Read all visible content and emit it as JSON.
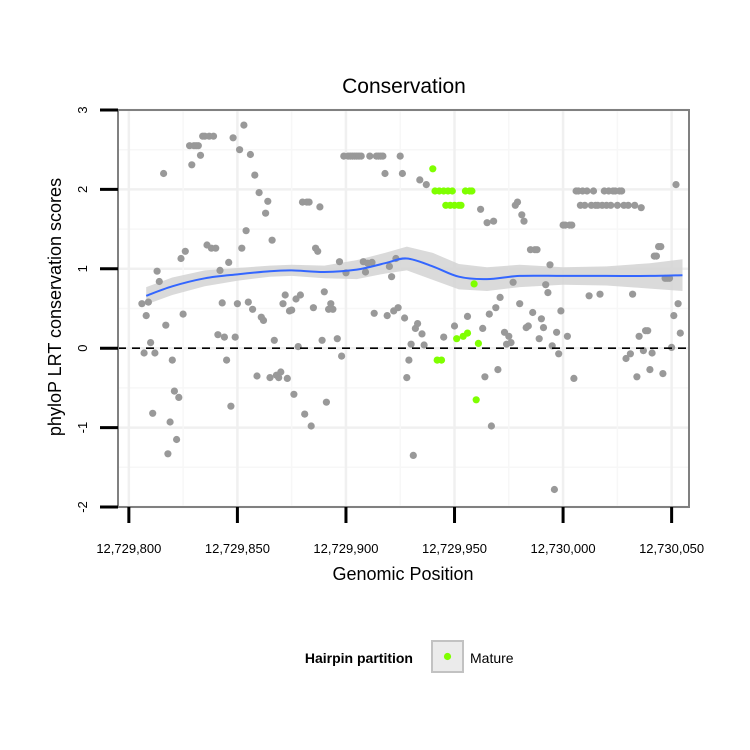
{
  "chart_data": {
    "type": "scatter",
    "title": "Conservation",
    "xlabel": "Genomic Position",
    "ylabel": "phyloP LRT conservation scores",
    "xlim": [
      12729795,
      12730058
    ],
    "ylim": [
      -2,
      3
    ],
    "x_ticks": [
      12729800,
      12729850,
      12729900,
      12729950,
      12730000,
      12730050
    ],
    "x_tick_labels": [
      "12,729,800",
      "12,729,850",
      "12,729,900",
      "12,729,950",
      "12,730,000",
      "12,730,050"
    ],
    "y_ticks": [
      -2,
      -1,
      0,
      1,
      2,
      3
    ],
    "y_tick_labels": [
      "-2",
      "-1",
      "0",
      "1",
      "2",
      "3"
    ],
    "reference_line": {
      "y": 0,
      "style": "dashed"
    },
    "grid": true,
    "colors": {
      "other": "#999999",
      "mature": "#7FFF00",
      "smooth": "#3366FF",
      "ribbon": "#D3D3D3",
      "panel_border": "#808080"
    },
    "legend": {
      "title": "Hairpin partition",
      "entries": [
        {
          "label": "Mature",
          "color": "#7FFF00"
        }
      ],
      "position": "bottom"
    },
    "smooth_line": {
      "x": [
        12729808,
        12729820,
        12729835,
        12729850,
        12729865,
        12729875,
        12729890,
        12729905,
        12729918,
        12729928,
        12729940,
        12729952,
        12729965,
        12729980,
        12730000,
        12730020,
        12730040,
        12730055
      ],
      "y": [
        0.66,
        0.78,
        0.88,
        0.93,
        0.97,
        0.98,
        0.96,
        0.99,
        1.07,
        1.13,
        1.03,
        0.9,
        0.87,
        0.91,
        0.91,
        0.91,
        0.91,
        0.92
      ],
      "lower": [
        0.55,
        0.67,
        0.78,
        0.85,
        0.9,
        0.91,
        0.88,
        0.87,
        0.94,
        0.98,
        0.86,
        0.74,
        0.72,
        0.77,
        0.8,
        0.79,
        0.75,
        0.72
      ],
      "upper": [
        0.77,
        0.89,
        0.98,
        1.01,
        1.04,
        1.05,
        1.04,
        1.11,
        1.2,
        1.28,
        1.2,
        1.06,
        1.02,
        1.05,
        1.02,
        1.03,
        1.07,
        1.12
      ]
    },
    "series": [
      {
        "name": "Other",
        "points": [
          [
            12729806,
            0.56
          ],
          [
            12729807,
            -0.06
          ],
          [
            12729808,
            0.41
          ],
          [
            12729809,
            0.58
          ],
          [
            12729810,
            0.07
          ],
          [
            12729811,
            -0.82
          ],
          [
            12729812,
            -0.06
          ],
          [
            12729813,
            0.97
          ],
          [
            12729814,
            0.84
          ],
          [
            12729816,
            2.2
          ],
          [
            12729817,
            0.29
          ],
          [
            12729818,
            -1.33
          ],
          [
            12729819,
            -0.93
          ],
          [
            12729820,
            -0.15
          ],
          [
            12729821,
            -0.54
          ],
          [
            12729822,
            -1.15
          ],
          [
            12729823,
            -0.62
          ],
          [
            12729824,
            1.13
          ],
          [
            12729825,
            0.43
          ],
          [
            12729826,
            1.22
          ],
          [
            12729828,
            2.55
          ],
          [
            12729829,
            2.31
          ],
          [
            12729830,
            2.55
          ],
          [
            12729831,
            2.55
          ],
          [
            12729832,
            2.55
          ],
          [
            12729833,
            2.43
          ],
          [
            12729834,
            2.67
          ],
          [
            12729835,
            2.67
          ],
          [
            12729836,
            1.3
          ],
          [
            12729837,
            2.67
          ],
          [
            12729838,
            1.26
          ],
          [
            12729839,
            2.67
          ],
          [
            12729840,
            1.26
          ],
          [
            12729841,
            0.17
          ],
          [
            12729842,
            0.98
          ],
          [
            12729843,
            0.57
          ],
          [
            12729844,
            0.14
          ],
          [
            12729845,
            -0.15
          ],
          [
            12729846,
            1.08
          ],
          [
            12729847,
            -0.73
          ],
          [
            12729848,
            2.65
          ],
          [
            12729849,
            0.14
          ],
          [
            12729850,
            0.56
          ],
          [
            12729851,
            2.5
          ],
          [
            12729852,
            1.26
          ],
          [
            12729853,
            2.81
          ],
          [
            12729854,
            1.48
          ],
          [
            12729855,
            0.58
          ],
          [
            12729856,
            2.44
          ],
          [
            12729857,
            0.49
          ],
          [
            12729858,
            2.18
          ],
          [
            12729859,
            -0.35
          ],
          [
            12729860,
            1.96
          ],
          [
            12729861,
            0.39
          ],
          [
            12729862,
            0.35
          ],
          [
            12729863,
            1.7
          ],
          [
            12729864,
            1.85
          ],
          [
            12729865,
            -0.37
          ],
          [
            12729866,
            1.36
          ],
          [
            12729867,
            0.1
          ],
          [
            12729868,
            -0.34
          ],
          [
            12729869,
            -0.37
          ],
          [
            12729870,
            -0.3
          ],
          [
            12729871,
            0.56
          ],
          [
            12729872,
            0.67
          ],
          [
            12729873,
            -0.38
          ],
          [
            12729874,
            0.47
          ],
          [
            12729875,
            0.48
          ],
          [
            12729876,
            -0.58
          ],
          [
            12729877,
            0.62
          ],
          [
            12729878,
            0.02
          ],
          [
            12729879,
            0.67
          ],
          [
            12729880,
            1.84
          ],
          [
            12729881,
            -0.83
          ],
          [
            12729882,
            1.84
          ],
          [
            12729883,
            1.84
          ],
          [
            12729884,
            -0.98
          ],
          [
            12729885,
            0.51
          ],
          [
            12729886,
            1.26
          ],
          [
            12729887,
            1.22
          ],
          [
            12729888,
            1.78
          ],
          [
            12729889,
            0.1
          ],
          [
            12729890,
            0.71
          ],
          [
            12729891,
            -0.68
          ],
          [
            12729892,
            0.49
          ],
          [
            12729893,
            0.56
          ],
          [
            12729894,
            0.49
          ],
          [
            12729896,
            0.12
          ],
          [
            12729897,
            1.09
          ],
          [
            12729898,
            -0.1
          ],
          [
            12729899,
            2.42
          ],
          [
            12729900,
            0.95
          ],
          [
            12729901,
            2.42
          ],
          [
            12729902,
            2.42
          ],
          [
            12729903,
            2.42
          ],
          [
            12729904,
            2.42
          ],
          [
            12729905,
            2.42
          ],
          [
            12729906,
            2.42
          ],
          [
            12729907,
            2.42
          ],
          [
            12729908,
            1.09
          ],
          [
            12729909,
            0.96
          ],
          [
            12729910,
            1.07
          ],
          [
            12729911,
            2.42
          ],
          [
            12729912,
            1.08
          ],
          [
            12729913,
            0.44
          ],
          [
            12729914,
            2.42
          ],
          [
            12729915,
            2.42
          ],
          [
            12729916,
            2.42
          ],
          [
            12729917,
            2.42
          ],
          [
            12729918,
            2.2
          ],
          [
            12729919,
            0.41
          ],
          [
            12729920,
            1.03
          ],
          [
            12729921,
            0.9
          ],
          [
            12729922,
            0.47
          ],
          [
            12729923,
            1.13
          ],
          [
            12729924,
            0.51
          ],
          [
            12729925,
            2.42
          ],
          [
            12729926,
            2.2
          ],
          [
            12729927,
            0.38
          ],
          [
            12729928,
            -0.37
          ],
          [
            12729929,
            -0.15
          ],
          [
            12729930,
            0.05
          ],
          [
            12729931,
            -1.35
          ],
          [
            12729932,
            0.25
          ],
          [
            12729933,
            0.31
          ],
          [
            12729934,
            2.12
          ],
          [
            12729935,
            0.18
          ],
          [
            12729936,
            0.04
          ],
          [
            12729937,
            2.06
          ],
          [
            12729945,
            0.14
          ],
          [
            12729950,
            0.28
          ],
          [
            12729956,
            0.4
          ],
          [
            12729962,
            1.75
          ],
          [
            12729963,
            0.25
          ],
          [
            12729964,
            -0.36
          ],
          [
            12729965,
            1.58
          ],
          [
            12729966,
            0.43
          ],
          [
            12729967,
            -0.98
          ],
          [
            12729968,
            1.6
          ],
          [
            12729969,
            0.51
          ],
          [
            12729970,
            -0.27
          ],
          [
            12729971,
            0.64
          ],
          [
            12729973,
            0.2
          ],
          [
            12729974,
            0.05
          ],
          [
            12729975,
            0.15
          ],
          [
            12729976,
            0.07
          ],
          [
            12729977,
            0.83
          ],
          [
            12729978,
            1.8
          ],
          [
            12729979,
            1.84
          ],
          [
            12729980,
            0.56
          ],
          [
            12729981,
            1.68
          ],
          [
            12729982,
            1.6
          ],
          [
            12729983,
            0.26
          ],
          [
            12729984,
            0.28
          ],
          [
            12729985,
            1.24
          ],
          [
            12729986,
            0.45
          ],
          [
            12729987,
            1.24
          ],
          [
            12729988,
            1.24
          ],
          [
            12729989,
            0.12
          ],
          [
            12729990,
            0.37
          ],
          [
            12729991,
            0.26
          ],
          [
            12729992,
            0.8
          ],
          [
            12729993,
            0.7
          ],
          [
            12729994,
            1.05
          ],
          [
            12729995,
            0.03
          ],
          [
            12729996,
            -1.78
          ],
          [
            12729997,
            0.2
          ],
          [
            12729998,
            -0.07
          ],
          [
            12729999,
            0.47
          ],
          [
            12730000,
            1.55
          ],
          [
            12730001,
            1.55
          ],
          [
            12730002,
            0.15
          ],
          [
            12730003,
            1.55
          ],
          [
            12730004,
            1.55
          ],
          [
            12730005,
            -0.38
          ],
          [
            12730006,
            1.98
          ],
          [
            12730007,
            1.98
          ],
          [
            12730008,
            1.8
          ],
          [
            12730009,
            1.98
          ],
          [
            12730010,
            1.8
          ],
          [
            12730011,
            1.98
          ],
          [
            12730012,
            0.66
          ],
          [
            12730013,
            1.8
          ],
          [
            12730014,
            1.98
          ],
          [
            12730015,
            1.8
          ],
          [
            12730016,
            1.8
          ],
          [
            12730017,
            0.68
          ],
          [
            12730018,
            1.8
          ],
          [
            12730019,
            1.98
          ],
          [
            12730020,
            1.8
          ],
          [
            12730021,
            1.98
          ],
          [
            12730022,
            1.8
          ],
          [
            12730023,
            1.98
          ],
          [
            12730024,
            1.98
          ],
          [
            12730025,
            1.8
          ],
          [
            12730026,
            1.98
          ],
          [
            12730027,
            1.98
          ],
          [
            12730028,
            1.8
          ],
          [
            12730029,
            -0.13
          ],
          [
            12730030,
            1.8
          ],
          [
            12730031,
            -0.07
          ],
          [
            12730032,
            0.68
          ],
          [
            12730033,
            1.8
          ],
          [
            12730034,
            -0.36
          ],
          [
            12730035,
            0.15
          ],
          [
            12730036,
            1.77
          ],
          [
            12730037,
            -0.03
          ],
          [
            12730038,
            0.22
          ],
          [
            12730039,
            0.22
          ],
          [
            12730040,
            -0.27
          ],
          [
            12730041,
            -0.06
          ],
          [
            12730042,
            1.16
          ],
          [
            12730043,
            1.16
          ],
          [
            12730044,
            1.28
          ],
          [
            12730045,
            1.28
          ],
          [
            12730046,
            -0.32
          ],
          [
            12730047,
            0.88
          ],
          [
            12730048,
            0.88
          ],
          [
            12730049,
            0.88
          ],
          [
            12730050,
            0.01
          ],
          [
            12730051,
            0.41
          ],
          [
            12730052,
            2.06
          ],
          [
            12730053,
            0.56
          ],
          [
            12730054,
            0.19
          ]
        ]
      },
      {
        "name": "Mature",
        "points": [
          [
            12729940,
            2.26
          ],
          [
            12729941,
            1.98
          ],
          [
            12729942,
            -0.15
          ],
          [
            12729943,
            1.98
          ],
          [
            12729944,
            -0.15
          ],
          [
            12729945,
            1.98
          ],
          [
            12729946,
            1.8
          ],
          [
            12729947,
            1.98
          ],
          [
            12729948,
            1.8
          ],
          [
            12729949,
            1.98
          ],
          [
            12729950,
            1.8
          ],
          [
            12729951,
            0.12
          ],
          [
            12729952,
            1.8
          ],
          [
            12729953,
            1.8
          ],
          [
            12729954,
            0.15
          ],
          [
            12729955,
            1.98
          ],
          [
            12729956,
            0.19
          ],
          [
            12729957,
            1.98
          ],
          [
            12729958,
            1.98
          ],
          [
            12729959,
            0.81
          ],
          [
            12729960,
            -0.65
          ],
          [
            12729961,
            0.06
          ]
        ]
      }
    ]
  }
}
